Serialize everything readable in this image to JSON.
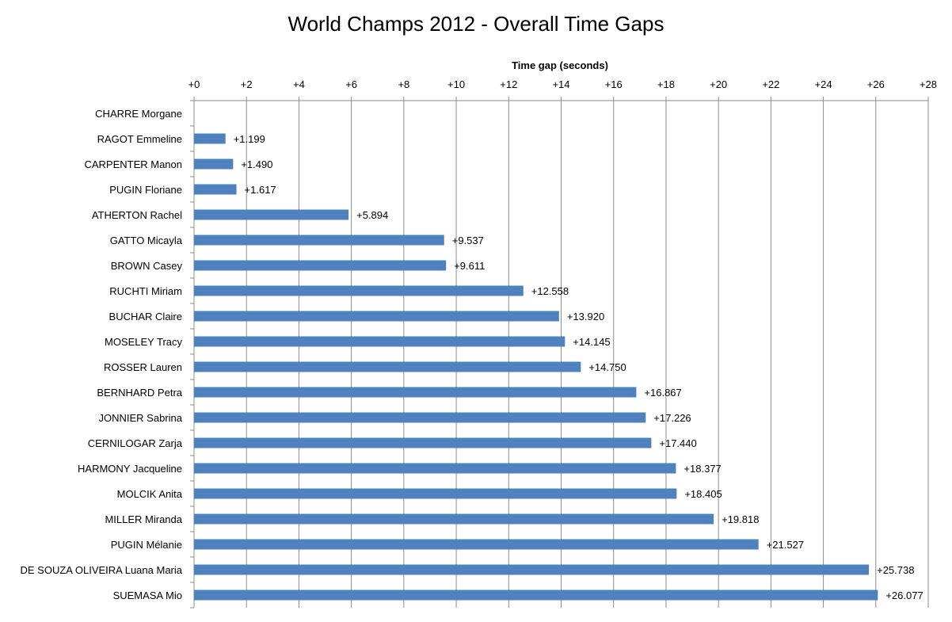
{
  "chart_data": {
    "type": "bar",
    "orientation": "horizontal",
    "title": "World Champs 2012 - Overall Time Gaps",
    "xlabel": "Time gap (seconds)",
    "ylabel": "",
    "xlim": [
      0,
      28
    ],
    "x_tick_labels": [
      "+0",
      "+2",
      "+4",
      "+6",
      "+8",
      "+10",
      "+12",
      "+14",
      "+16",
      "+18",
      "+20",
      "+22",
      "+24",
      "+26",
      "+28"
    ],
    "grid": true,
    "axis_position": "top",
    "bar_color": "#4f81bd",
    "categories": [
      "CHARRE Morgane",
      "RAGOT Emmeline",
      "CARPENTER Manon",
      "PUGIN Floriane",
      "ATHERTON Rachel",
      "GATTO Micayla",
      "BROWN Casey",
      "RUCHTI Miriam",
      "BUCHAR Claire",
      "MOSELEY Tracy",
      "ROSSER Lauren",
      "BERNHARD Petra",
      "JONNIER Sabrina",
      "CERNILOGAR Zarja",
      "HARMONY Jacqueline",
      "MOLCIK Anita",
      "MILLER Miranda",
      "PUGIN Mélanie",
      "DE SOUZA OLIVEIRA Luana Maria",
      "SUEMASA Mio"
    ],
    "values": [
      0,
      1.199,
      1.49,
      1.617,
      5.894,
      9.537,
      9.611,
      12.558,
      13.92,
      14.145,
      14.75,
      16.867,
      17.226,
      17.44,
      18.377,
      18.405,
      19.818,
      21.527,
      25.738,
      26.077
    ],
    "data_labels": [
      "",
      "+1.199",
      "+1.490",
      "+1.617",
      "+5.894",
      "+9.537",
      "+9.611",
      "+12.558",
      "+13.920",
      "+14.145",
      "+14.750",
      "+16.867",
      "+17.226",
      "+17.440",
      "+18.377",
      "+18.405",
      "+19.818",
      "+21.527",
      "+25.738",
      "+26.077"
    ]
  }
}
